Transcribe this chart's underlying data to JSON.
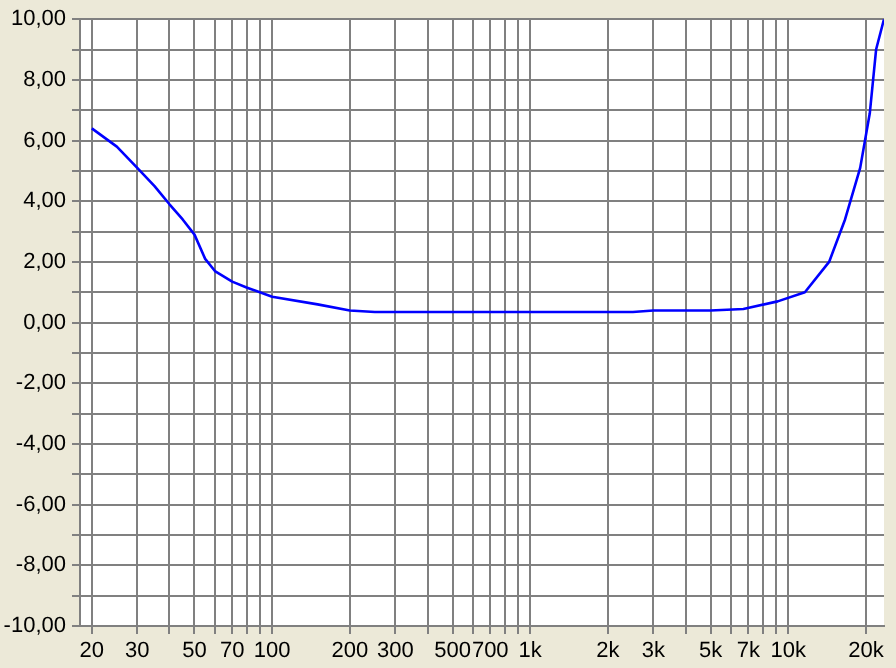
{
  "chart_data": {
    "type": "line",
    "log": "x",
    "grid": true,
    "legend": false,
    "marker": "none",
    "line_style": "solid",
    "xlim": [
      18,
      23500
    ],
    "ylim": [
      -10,
      10
    ],
    "xticks": [
      20,
      30,
      {
        "value": 40,
        "label": null
      },
      50,
      {
        "value": 60,
        "label": null
      },
      70,
      {
        "value": 80,
        "label": null
      },
      {
        "value": 90,
        "label": null
      },
      100,
      200,
      300,
      {
        "value": 400,
        "label": null
      },
      500,
      {
        "value": 600,
        "label": null
      },
      700,
      {
        "value": 800,
        "label": null
      },
      {
        "value": 900,
        "label": null
      },
      {
        "value": 1000,
        "label": "1k"
      },
      {
        "value": 2000,
        "label": "2k"
      },
      {
        "value": 3000,
        "label": "3k"
      },
      {
        "value": 4000,
        "label": null
      },
      {
        "value": 5000,
        "label": "5k"
      },
      {
        "value": 6000,
        "label": null
      },
      {
        "value": 7000,
        "label": "7k"
      },
      {
        "value": 8000,
        "label": null
      },
      {
        "value": 9000,
        "label": null
      },
      {
        "value": 10000,
        "label": "10k"
      },
      {
        "value": 20000,
        "label": "20k"
      }
    ],
    "yticks": [
      {
        "value": -10,
        "label": "-10,00"
      },
      {
        "value": -9,
        "label": null
      },
      {
        "value": -8,
        "label": "-8,00"
      },
      {
        "value": -7,
        "label": null
      },
      {
        "value": -6,
        "label": "-6,00"
      },
      {
        "value": -5,
        "label": null
      },
      {
        "value": -4,
        "label": "-4,00"
      },
      {
        "value": -3,
        "label": null
      },
      {
        "value": -2,
        "label": "-2,00"
      },
      {
        "value": -1,
        "label": null
      },
      {
        "value": 0,
        "label": "0,00"
      },
      {
        "value": 1,
        "label": null
      },
      {
        "value": 2,
        "label": "2,00"
      },
      {
        "value": 3,
        "label": null
      },
      {
        "value": 4,
        "label": "4,00"
      },
      {
        "value": 5,
        "label": null
      },
      {
        "value": 6,
        "label": "6,00"
      },
      {
        "value": 7,
        "label": null
      },
      {
        "value": 8,
        "label": "8,00"
      },
      {
        "value": 9,
        "label": null
      },
      {
        "value": 10,
        "label": "10,00"
      }
    ],
    "series": [
      {
        "color": "#0000ff",
        "x": [
          20,
          25,
          30,
          35,
          40,
          45,
          50,
          55,
          60,
          70,
          80,
          100,
          150,
          200,
          250,
          500,
          1000,
          2000,
          2500,
          3000,
          5000,
          6700,
          9100,
          11600,
          14400,
          16600,
          19000,
          20700,
          21900,
          23500
        ],
        "values": [
          6.4,
          5.8,
          5.1,
          4.5,
          3.9,
          3.4,
          2.9,
          2.1,
          1.7,
          1.35,
          1.15,
          0.85,
          0.6,
          0.4,
          0.35,
          0.35,
          0.35,
          0.35,
          0.35,
          0.4,
          0.4,
          0.45,
          0.7,
          1.0,
          2.0,
          3.4,
          5.1,
          6.9,
          9.0,
          10
        ]
      }
    ]
  }
}
